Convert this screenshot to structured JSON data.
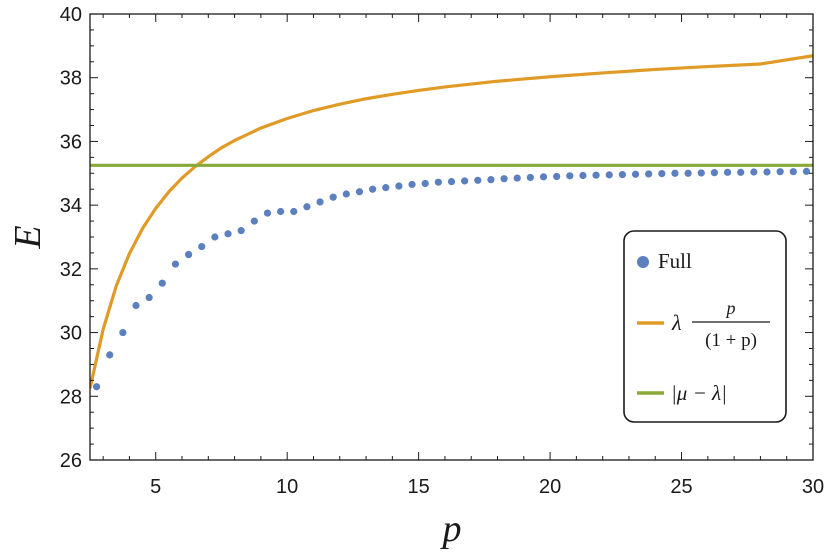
{
  "chart_data": {
    "type": "line",
    "xlabel": "p",
    "ylabel": "E",
    "xlim": [
      2.5,
      30
    ],
    "ylim": [
      26,
      40
    ],
    "x_ticks": [
      5,
      10,
      15,
      20,
      25,
      30
    ],
    "y_ticks": [
      26,
      28,
      30,
      32,
      34,
      36,
      38,
      40
    ],
    "grid": false,
    "legend_position": "right",
    "series": [
      {
        "name": "Full",
        "kind": "scatter",
        "color": "#5b7fbf",
        "x": [
          2.75,
          3.25,
          3.75,
          4.25,
          4.75,
          5.25,
          5.75,
          6.25,
          6.75,
          7.25,
          7.75,
          8.25,
          8.75,
          9.25,
          9.75,
          10.25,
          10.75,
          11.25,
          11.75,
          12.25,
          12.75,
          13.25,
          13.75,
          14.25,
          14.75,
          15.25,
          15.75,
          16.25,
          16.75,
          17.25,
          17.75,
          18.25,
          18.75,
          19.25,
          19.75,
          20.25,
          20.75,
          21.25,
          21.75,
          22.25,
          22.75,
          23.25,
          23.75,
          24.25,
          24.75,
          25.25,
          25.75,
          26.25,
          26.75,
          27.25,
          27.75,
          28.25,
          28.75,
          29.25,
          29.75
        ],
        "y": [
          28.3,
          29.3,
          30.0,
          30.85,
          31.1,
          31.55,
          32.15,
          32.45,
          32.7,
          33.0,
          33.1,
          33.2,
          33.5,
          33.75,
          33.8,
          33.8,
          33.95,
          34.1,
          34.25,
          34.35,
          34.42,
          34.5,
          34.55,
          34.6,
          34.65,
          34.68,
          34.72,
          34.74,
          34.76,
          34.78,
          34.8,
          34.83,
          34.85,
          34.87,
          34.89,
          34.9,
          34.92,
          34.93,
          34.94,
          34.95,
          34.96,
          34.97,
          34.98,
          34.99,
          35.0,
          35.0,
          35.01,
          35.02,
          35.03,
          35.03,
          35.04,
          35.04,
          35.05,
          35.05,
          35.06
        ]
      },
      {
        "name": "λ p/(1+p)",
        "kind": "line",
        "color": "#e09a26",
        "x": [
          2.5,
          3,
          3.5,
          4,
          4.5,
          5,
          5.5,
          6,
          6.5,
          7,
          7.5,
          8,
          9,
          10,
          11,
          12,
          13,
          14,
          15,
          16,
          18,
          20,
          22,
          24,
          26,
          28,
          30
        ],
        "y": [
          28.25,
          30.1,
          31.47,
          32.48,
          33.27,
          33.9,
          34.42,
          34.85,
          35.21,
          35.52,
          35.8,
          36.03,
          36.42,
          36.72,
          36.97,
          37.17,
          37.34,
          37.48,
          37.6,
          37.71,
          37.89,
          38.03,
          38.15,
          38.26,
          38.35,
          38.43,
          38.69
        ]
      },
      {
        "name": "|μ − λ|",
        "kind": "line",
        "color": "#8aa83a",
        "x": [
          2.5,
          30
        ],
        "y": [
          35.25,
          35.25
        ]
      }
    ]
  },
  "legend": {
    "full_label": "Full",
    "curve_prefix": "λ",
    "curve_numerator": "p",
    "curve_denominator": "(1 + p)",
    "const_label": "|μ − λ|"
  }
}
